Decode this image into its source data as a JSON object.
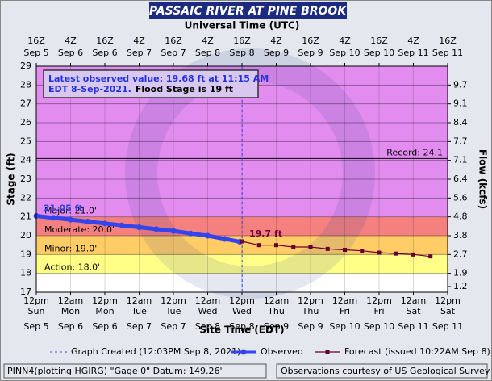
{
  "header": {
    "title": "PASSAIC RIVER AT PINE BROOK"
  },
  "chart_data": {
    "type": "line",
    "top_axis_title": "Universal Time (UTC)",
    "xlabel": "Site Time (EDT)",
    "ylabel": "Stage (ft)",
    "y2label": "Flow (kcfs)",
    "xlim": [
      "2021-09-05 12:00",
      "2021-09-11 12:00"
    ],
    "xticks": [
      {
        "value": "2021-09-05 12:00",
        "label": "12pm"
      },
      {
        "value": "2021-09-06 00:00",
        "label": "12am"
      },
      {
        "value": "2021-09-06 12:00",
        "label": "12pm"
      },
      {
        "value": "2021-09-07 00:00",
        "label": "12am"
      },
      {
        "value": "2021-09-07 12:00",
        "label": "12pm"
      },
      {
        "value": "2021-09-08 00:00",
        "label": "12am"
      },
      {
        "value": "2021-09-08 12:00",
        "label": "12pm"
      },
      {
        "value": "2021-09-09 00:00",
        "label": "12am"
      },
      {
        "value": "2021-09-09 12:00",
        "label": "12pm"
      },
      {
        "value": "2021-09-10 00:00",
        "label": "12am"
      },
      {
        "value": "2021-09-10 12:00",
        "label": "12pm"
      },
      {
        "value": "2021-09-11 00:00",
        "label": "12am"
      },
      {
        "value": "2021-09-11 12:00",
        "label": "12pm"
      }
    ],
    "xtick_days": [
      "Sun",
      "Mon",
      "Mon",
      "Tue",
      "Tue",
      "Wed",
      "Wed",
      "Thu",
      "Thu",
      "Fri",
      "Fri",
      "Sat",
      "Sat"
    ],
    "xtick_dates": [
      "Sep 5",
      "Sep 6",
      "Sep 6",
      "Sep 7",
      "Sep 7",
      "Sep 8",
      "Sep 8",
      "Sep 9",
      "Sep 9",
      "Sep 10",
      "Sep 10",
      "Sep 11",
      "Sep 11"
    ],
    "top_tick_labels": [
      "16Z",
      "4Z",
      "16Z",
      "4Z",
      "16Z",
      "4Z",
      "16Z",
      "4Z",
      "16Z",
      "4Z",
      "16Z",
      "4Z",
      "16Z"
    ],
    "top_tick_dates": [
      "Sep 5",
      "Sep 6",
      "Sep 6",
      "Sep 7",
      "Sep 7",
      "Sep 8",
      "Sep 8",
      "Sep 9",
      "Sep 9",
      "Sep 10",
      "Sep 10",
      "Sep 11",
      "Sep 11"
    ],
    "ylim": [
      17,
      29
    ],
    "yticks": [
      17,
      18,
      19,
      20,
      21,
      22,
      23,
      24,
      25,
      26,
      27,
      28,
      29
    ],
    "grid": true,
    "flow_ticks": [
      {
        "stage": 17.3,
        "flow": 1.2
      },
      {
        "stage": 18,
        "flow": 1.9
      },
      {
        "stage": 19,
        "flow": 2.7
      },
      {
        "stage": 20,
        "flow": 3.8
      },
      {
        "stage": 21,
        "flow": 4.8
      },
      {
        "stage": 22,
        "flow": 5.6
      },
      {
        "stage": 23,
        "flow": 6.4
      },
      {
        "stage": 24,
        "flow": 7.1
      },
      {
        "stage": 25,
        "flow": 7.7
      },
      {
        "stage": 26,
        "flow": 8.4
      },
      {
        "stage": 27,
        "flow": 9.1
      },
      {
        "stage": 28,
        "flow": 9.7
      }
    ],
    "flood_categories": [
      {
        "stage": 18,
        "label": "Action: 18.0'",
        "color": "#ffff88"
      },
      {
        "stage": 19,
        "label": "Minor: 19.0'",
        "color": "#ffcc66"
      },
      {
        "stage": 20,
        "label": "Moderate: 20.0'",
        "color": "#f48080"
      },
      {
        "stage": 21,
        "label": "Major: 21.0'",
        "color": "#e28cf0"
      }
    ],
    "record": {
      "stage": 24.1,
      "label": "Record: 24.1'"
    },
    "series": [
      {
        "name": "Observed",
        "color": "#3344ee",
        "marker": "circle",
        "x": [
          "2021-09-05 12:00",
          "2021-09-05 18:00",
          "2021-09-06 00:00",
          "2021-09-06 06:00",
          "2021-09-06 12:00",
          "2021-09-06 18:00",
          "2021-09-07 00:00",
          "2021-09-07 06:00",
          "2021-09-07 12:00",
          "2021-09-07 18:00",
          "2021-09-08 00:00",
          "2021-09-08 06:00",
          "2021-09-08 11:15"
        ],
        "values": [
          21.05,
          20.95,
          20.85,
          20.75,
          20.65,
          20.55,
          20.45,
          20.35,
          20.25,
          20.12,
          20.0,
          19.83,
          19.68
        ]
      },
      {
        "name": "Forecast (issued 10:22AM Sep 8)",
        "color": "#660033",
        "marker": "square",
        "x": [
          "2021-09-08 12:00",
          "2021-09-08 18:00",
          "2021-09-09 00:00",
          "2021-09-09 06:00",
          "2021-09-09 12:00",
          "2021-09-09 18:00",
          "2021-09-10 00:00",
          "2021-09-10 06:00",
          "2021-09-10 12:00",
          "2021-09-10 18:00",
          "2021-09-11 00:00",
          "2021-09-11 06:00"
        ],
        "values": [
          19.7,
          19.5,
          19.5,
          19.4,
          19.4,
          19.3,
          19.25,
          19.2,
          19.1,
          19.05,
          19.0,
          18.9
        ]
      }
    ],
    "annotations": [
      {
        "text": "21.05 ft",
        "x": "2021-09-05 12:00",
        "value": 21.05,
        "color": "#3344ee"
      },
      {
        "text": "19.7 ft",
        "x": "2021-09-08 12:00",
        "value": 19.7,
        "color": "#660033"
      }
    ],
    "graph_created": {
      "x": "2021-09-08 12:03",
      "label": "Graph Created (12:03PM Sep 8, 2021)",
      "color": "#3344ee"
    },
    "info_box": {
      "line1": "Latest observed value: 19.68 ft at 11:15 AM",
      "line2": "EDT 8-Sep-2021.",
      "line2_note": "Flood Stage is 19 ft"
    }
  },
  "footer": {
    "left": "PINN4(plotting HGIRG) \"Gage 0\" Datum: 149.26'",
    "right": "Observations courtesy of US Geological Survey"
  }
}
